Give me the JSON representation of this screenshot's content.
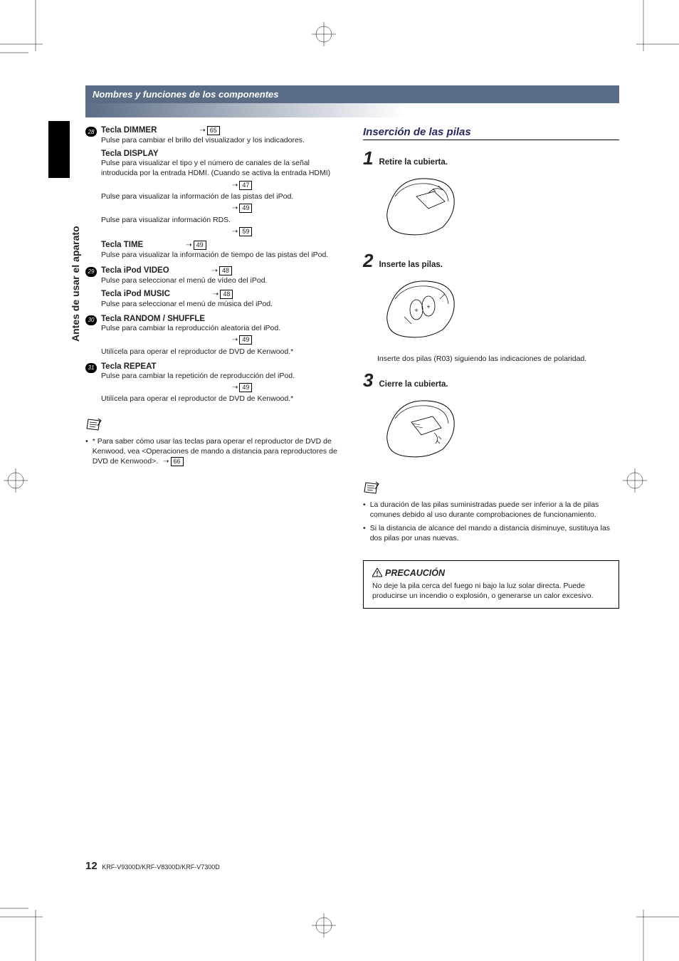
{
  "header": "Nombres y funciones de los componentes",
  "sideLabel": "Antes de usar el aparato",
  "items": [
    {
      "num": "28",
      "blocks": [
        {
          "title": "Tecla DIMMER",
          "topRef": "65",
          "descs": [
            "Pulse para cambiar el brillo del visualizador y los indicadores."
          ]
        },
        {
          "title": "Tecla DISPLAY",
          "descs": [
            "Pulse para visualizar el tipo y el número de canales de la señal introducida por la entrada HDMI. (Cuando se activa la entrada HDMI)|47",
            "Pulse para visualizar la información de las pistas del iPod.|49",
            "Pulse para visualizar información RDS.|59"
          ]
        },
        {
          "title": "Tecla TIME",
          "topRef": "49",
          "descs": [
            "Pulse para visualizar la información de tiempo de las pistas del iPod."
          ]
        }
      ]
    },
    {
      "num": "29",
      "blocks": [
        {
          "title": "Tecla iPod VIDEO",
          "topRef": "48",
          "descs": [
            "Pulse para seleccionar el menú de vídeo del iPod."
          ]
        },
        {
          "title": "Tecla iPod MUSIC",
          "topRef": "48",
          "descs": [
            "Pulse para seleccionar el menú de música del iPod."
          ]
        }
      ]
    },
    {
      "num": "30",
      "blocks": [
        {
          "title": "Tecla RANDOM / SHUFFLE",
          "descs": [
            "Pulse para cambiar la reproducción aleatoria del iPod.|49",
            "Utilícela para operar el reproductor de DVD de Kenwood.*"
          ]
        }
      ]
    },
    {
      "num": "31",
      "blocks": [
        {
          "title": "Tecla REPEAT",
          "descs": [
            "Pulse para cambiar la repetición de reproducción del iPod.|49",
            "Utilícela para operar el reproductor de DVD de Kenwood.*"
          ]
        }
      ]
    }
  ],
  "footnote": "* Para saber cómo usar las teclas para operar el reproductor de DVD de Kenwood, vea <Operaciones de mando a distancia para reproductores de DVD de Kenwood>.",
  "footnoteRef": "66",
  "rightTitle": "Inserción de las pilas",
  "steps": [
    {
      "n": "1",
      "title": "Retire la cubierta."
    },
    {
      "n": "2",
      "title": "Inserte las pilas.",
      "note": "Inserte dos pilas (R03) siguiendo las indicaciones de polaridad."
    },
    {
      "n": "3",
      "title": "Cierre la cubierta."
    }
  ],
  "rightNotes": [
    "La duración de las pilas suministradas puede ser inferior a la de pilas comunes debido al uso durante comprobaciones de funcionamiento.",
    "Si la distancia de alcance del mando a distancia disminuye, sustituya las dos pilas por unas nuevas."
  ],
  "cautionTitle": "PRECAUCIÓN",
  "cautionBody": "No deje la pila cerca del fuego ni bajo la luz solar directa. Puede producirse un incendio o explosión, o generarse un calor excesivo.",
  "pageNum": "12",
  "models": "KRF-V9300D/KRF-V8300D/KRF-V7300D"
}
